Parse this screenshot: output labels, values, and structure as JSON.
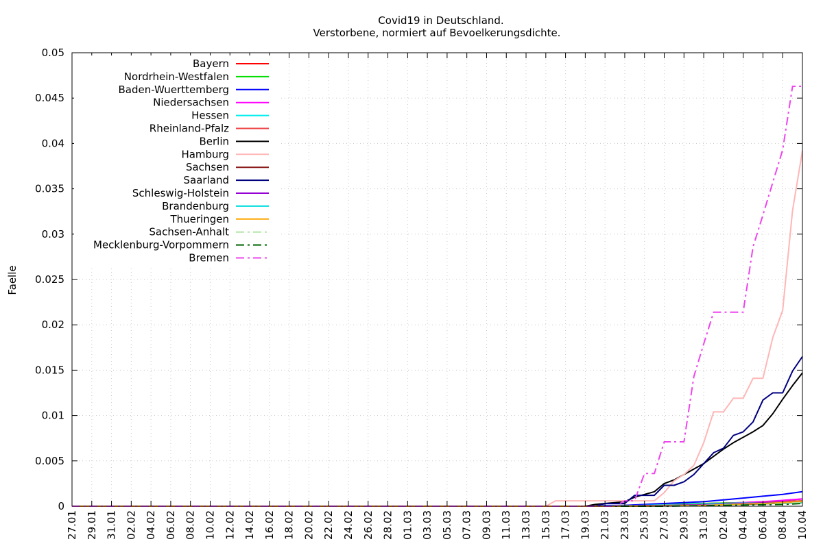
{
  "chart_data": {
    "type": "line",
    "title": "Covid19 in Deutschland.",
    "subtitle": "Verstorbene, normiert auf Bevoelkerungsdichte.",
    "xlabel": "",
    "ylabel": "Faelle",
    "ylim": [
      0,
      0.05
    ],
    "yticks": [
      "0",
      "0.005",
      "0.01",
      "0.015",
      "0.02",
      "0.025",
      "0.03",
      "0.035",
      "0.04",
      "0.045",
      "0.05"
    ],
    "xticks": [
      "27.01",
      "29.01",
      "31.01",
      "02.02",
      "04.02",
      "06.02",
      "08.02",
      "10.02",
      "12.02",
      "14.02",
      "16.02",
      "18.02",
      "20.02",
      "22.02",
      "24.02",
      "26.02",
      "28.02",
      "01.03",
      "03.03",
      "05.03",
      "07.03",
      "09.03",
      "11.03",
      "13.03",
      "15.03",
      "17.03",
      "19.03",
      "21.03",
      "23.03",
      "25.03",
      "27.03",
      "29.03",
      "31.03",
      "02.04",
      "04.04",
      "06.04",
      "08.04",
      "10.04"
    ],
    "grid": true,
    "legend_position": "top-left",
    "series": [
      {
        "name": "Bayern",
        "color": "#ff0000",
        "dash": "solid",
        "points": [
          [
            "27.01",
            0
          ],
          [
            "19.03",
            0
          ],
          [
            "23.03",
            0.0001
          ],
          [
            "27.03",
            0.0002
          ],
          [
            "31.03",
            0.0003
          ],
          [
            "04.04",
            0.0004
          ],
          [
            "08.04",
            0.0006
          ],
          [
            "10.04",
            0.0008
          ]
        ]
      },
      {
        "name": "Nordrhein-Westfalen",
        "color": "#00dd00",
        "dash": "solid",
        "points": [
          [
            "27.01",
            0
          ],
          [
            "19.03",
            0
          ],
          [
            "23.03",
            0.0001
          ],
          [
            "27.03",
            0.0002
          ],
          [
            "31.03",
            0.0003
          ],
          [
            "04.04",
            0.0004
          ],
          [
            "08.04",
            0.0005
          ],
          [
            "10.04",
            0.0006
          ]
        ]
      },
      {
        "name": "Baden-Wuerttemberg",
        "color": "#0000ff",
        "dash": "solid",
        "points": [
          [
            "27.01",
            0
          ],
          [
            "19.03",
            0
          ],
          [
            "21.03",
            0.0001
          ],
          [
            "23.03",
            0.0001
          ],
          [
            "25.03",
            0.0002
          ],
          [
            "27.03",
            0.0003
          ],
          [
            "29.03",
            0.0004
          ],
          [
            "31.03",
            0.0005
          ],
          [
            "02.04",
            0.0007
          ],
          [
            "04.04",
            0.0009
          ],
          [
            "06.04",
            0.0011
          ],
          [
            "08.04",
            0.0013
          ],
          [
            "10.04",
            0.0016
          ]
        ]
      },
      {
        "name": "Niedersachsen",
        "color": "#ff00ff",
        "dash": "solid",
        "points": [
          [
            "27.01",
            0
          ],
          [
            "19.03",
            0
          ],
          [
            "25.03",
            0.0001
          ],
          [
            "29.03",
            0.0002
          ],
          [
            "02.04",
            0.0003
          ],
          [
            "06.04",
            0.0005
          ],
          [
            "10.04",
            0.0008
          ]
        ]
      },
      {
        "name": "Hessen",
        "color": "#00eeee",
        "dash": "solid",
        "points": [
          [
            "27.01",
            0
          ],
          [
            "19.03",
            0
          ],
          [
            "25.03",
            0.0001
          ],
          [
            "29.03",
            0.0002
          ],
          [
            "02.04",
            0.0003
          ],
          [
            "06.04",
            0.0004
          ],
          [
            "10.04",
            0.0006
          ]
        ]
      },
      {
        "name": "Rheinland-Pfalz",
        "color": "#ee4444",
        "dash": "solid",
        "points": [
          [
            "27.01",
            0
          ],
          [
            "21.03",
            0
          ],
          [
            "27.03",
            0.0001
          ],
          [
            "02.04",
            0.0002
          ],
          [
            "06.04",
            0.0004
          ],
          [
            "10.04",
            0.0006
          ]
        ]
      },
      {
        "name": "Berlin",
        "color": "#000000",
        "dash": "solid",
        "points": [
          [
            "27.01",
            0
          ],
          [
            "19.03",
            0
          ],
          [
            "20.03",
            0.0002
          ],
          [
            "21.03",
            0.0003
          ],
          [
            "22.03",
            0.0004
          ],
          [
            "23.03",
            0.0005
          ],
          [
            "24.03",
            0.001
          ],
          [
            "25.03",
            0.0013
          ],
          [
            "26.03",
            0.0016
          ],
          [
            "27.03",
            0.0025
          ],
          [
            "28.03",
            0.0029
          ],
          [
            "29.03",
            0.0035
          ],
          [
            "30.03",
            0.0041
          ],
          [
            "31.03",
            0.0047
          ],
          [
            "01.04",
            0.0055
          ],
          [
            "02.04",
            0.0063
          ],
          [
            "03.04",
            0.007
          ],
          [
            "04.04",
            0.0076
          ],
          [
            "05.04",
            0.0082
          ],
          [
            "06.04",
            0.0089
          ],
          [
            "07.04",
            0.0102
          ],
          [
            "08.04",
            0.0118
          ],
          [
            "09.04",
            0.0133
          ],
          [
            "10.04",
            0.0147
          ]
        ]
      },
      {
        "name": "Hamburg",
        "color": "#ffb6b6",
        "dash": "solid",
        "points": [
          [
            "27.01",
            0
          ],
          [
            "15.03",
            0
          ],
          [
            "16.03",
            0.0006
          ],
          [
            "17.03",
            0.0006
          ],
          [
            "25.03",
            0.0006
          ],
          [
            "26.03",
            0.0006
          ],
          [
            "27.03",
            0.0015
          ],
          [
            "28.03",
            0.0028
          ],
          [
            "29.03",
            0.0035
          ],
          [
            "30.03",
            0.0045
          ],
          [
            "31.03",
            0.007
          ],
          [
            "01.04",
            0.0104
          ],
          [
            "02.04",
            0.0104
          ],
          [
            "03.04",
            0.0119
          ],
          [
            "04.04",
            0.0119
          ],
          [
            "05.04",
            0.0141
          ],
          [
            "06.04",
            0.0141
          ],
          [
            "07.04",
            0.0186
          ],
          [
            "08.04",
            0.0216
          ],
          [
            "09.04",
            0.0326
          ],
          [
            "10.04",
            0.0392
          ]
        ]
      },
      {
        "name": "Sachsen",
        "color": "#8b1a1a",
        "dash": "solid",
        "points": [
          [
            "27.01",
            0
          ],
          [
            "23.03",
            0
          ],
          [
            "29.03",
            0.0001
          ],
          [
            "04.04",
            0.0002
          ],
          [
            "10.04",
            0.0004
          ]
        ]
      },
      {
        "name": "Saarland",
        "color": "#000080",
        "dash": "solid",
        "points": [
          [
            "27.01",
            0
          ],
          [
            "20.03",
            0
          ],
          [
            "21.03",
            0.0003
          ],
          [
            "22.03",
            0.0003
          ],
          [
            "23.03",
            0.0003
          ],
          [
            "24.03",
            0.0012
          ],
          [
            "25.03",
            0.0012
          ],
          [
            "26.03",
            0.0012
          ],
          [
            "27.03",
            0.0023
          ],
          [
            "28.03",
            0.0023
          ],
          [
            "29.03",
            0.0027
          ],
          [
            "30.03",
            0.0035
          ],
          [
            "31.03",
            0.0047
          ],
          [
            "01.04",
            0.0059
          ],
          [
            "02.04",
            0.0064
          ],
          [
            "03.04",
            0.0078
          ],
          [
            "04.04",
            0.0082
          ],
          [
            "05.04",
            0.0093
          ],
          [
            "06.04",
            0.0117
          ],
          [
            "07.04",
            0.0125
          ],
          [
            "08.04",
            0.0125
          ],
          [
            "09.04",
            0.0149
          ],
          [
            "10.04",
            0.0165
          ]
        ]
      },
      {
        "name": "Schleswig-Holstein",
        "color": "#9400d3",
        "dash": "solid",
        "points": [
          [
            "27.01",
            0
          ],
          [
            "23.03",
            0
          ],
          [
            "29.03",
            0.0001
          ],
          [
            "04.04",
            0.0003
          ],
          [
            "10.04",
            0.0005
          ]
        ]
      },
      {
        "name": "Brandenburg",
        "color": "#00dddd",
        "dash": "solid",
        "points": [
          [
            "27.01",
            0
          ],
          [
            "25.03",
            0
          ],
          [
            "31.03",
            0.0001
          ],
          [
            "06.04",
            0.0003
          ],
          [
            "10.04",
            0.0004
          ]
        ]
      },
      {
        "name": "Thueringen",
        "color": "#ffa500",
        "dash": "solid",
        "points": [
          [
            "27.01",
            0
          ],
          [
            "25.03",
            0
          ],
          [
            "31.03",
            0.0001
          ],
          [
            "06.04",
            0.0003
          ],
          [
            "10.04",
            0.0005
          ]
        ]
      },
      {
        "name": "Sachsen-Anhalt",
        "color": "#b4e8a8",
        "dash": "dashdot",
        "points": [
          [
            "27.01",
            0
          ],
          [
            "25.03",
            0
          ],
          [
            "31.03",
            0.0001
          ],
          [
            "06.04",
            0.0002
          ],
          [
            "10.04",
            0.0004
          ]
        ]
      },
      {
        "name": "Mecklenburg-Vorpommern",
        "color": "#006400",
        "dash": "dashdot",
        "points": [
          [
            "27.01",
            0
          ],
          [
            "27.03",
            0
          ],
          [
            "02.04",
            0.0001
          ],
          [
            "08.04",
            0.0002
          ],
          [
            "10.04",
            0.0003
          ]
        ]
      },
      {
        "name": "Bremen",
        "color": "#ee44ee",
        "dash": "dashdot",
        "points": [
          [
            "27.01",
            0
          ],
          [
            "22.03",
            0
          ],
          [
            "23.03",
            0.0006
          ],
          [
            "24.03",
            0.0006
          ],
          [
            "25.03",
            0.0036
          ],
          [
            "26.03",
            0.0036
          ],
          [
            "27.03",
            0.0071
          ],
          [
            "28.03",
            0.0071
          ],
          [
            "29.03",
            0.0071
          ],
          [
            "30.03",
            0.0143
          ],
          [
            "31.03",
            0.0179
          ],
          [
            "01.04",
            0.0214
          ],
          [
            "02.04",
            0.0214
          ],
          [
            "03.04",
            0.0214
          ],
          [
            "04.04",
            0.0214
          ],
          [
            "05.04",
            0.0286
          ],
          [
            "06.04",
            0.0321
          ],
          [
            "07.04",
            0.0357
          ],
          [
            "08.04",
            0.0393
          ],
          [
            "09.04",
            0.0463
          ],
          [
            "10.04",
            0.0463
          ]
        ]
      }
    ]
  }
}
